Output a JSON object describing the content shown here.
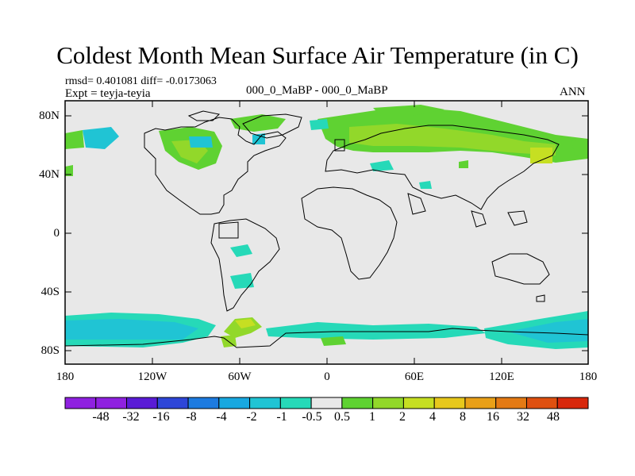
{
  "title": "Coldest Month Mean Surface Air Temperature (in C)",
  "stats": "rmsd= 0.401081 diff= -0.0173063",
  "expt": "Expt = teyja-teyia",
  "center_label": "000_0_MaBP - 000_0_MaBP",
  "season": "ANN",
  "lat_labels": [
    "80N",
    "40N",
    "0",
    "40S",
    "80S"
  ],
  "lon_labels": [
    "180",
    "120W",
    "60W",
    "0",
    "60E",
    "120E",
    "180"
  ],
  "colorbar": {
    "labels": [
      "-48",
      "-32",
      "-16",
      "-8",
      "-4",
      "-2",
      "-1",
      "-0.5",
      "0.5",
      "1",
      "2",
      "4",
      "8",
      "16",
      "32",
      "48"
    ],
    "colors": [
      "#8f21e0",
      "#5a1bd6",
      "#2e46d8",
      "#1d7be0",
      "#18a8e0",
      "#20c4d4",
      "#26d9b8",
      "#e8e8e8",
      "#5fd232",
      "#92d82a",
      "#c6df22",
      "#e7c81c",
      "#e9a018",
      "#e47a14",
      "#df5010",
      "#d8280c"
    ]
  },
  "map": {
    "ocean_color": "#e8e8e8",
    "lat_range": [
      -90,
      90
    ],
    "lon_range": [
      -180,
      180
    ]
  }
}
